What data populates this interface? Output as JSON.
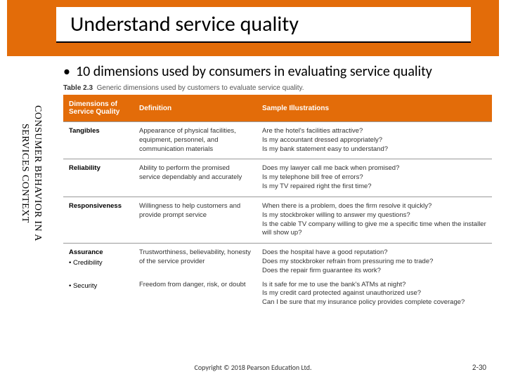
{
  "colors": {
    "accent": "#e36c09",
    "header_text": "#ffffff",
    "text": "#333333",
    "border": "#999999",
    "title_underline": "#000000"
  },
  "title": "Understand service quality",
  "bullet": "10 dimensions used by consumers in evaluating service quality",
  "sidebar": "CONSUMER BEHAVIOR IN A\nSERVICES CONTEXT",
  "caption_prefix": "Table 2.3",
  "caption_text": "Generic dimensions used by customers to evaluate service quality.",
  "table": {
    "headers": [
      "Dimensions of Service Quality",
      "Definition",
      "Sample Illustrations"
    ],
    "rows": [
      {
        "dim": "Tangibles",
        "def": "Appearance of physical facilities, equipment, personnel, and communication materials",
        "ill": "Are the hotel's facilities attractive?\nIs my accountant dressed appropriately?\nIs my bank statement easy to understand?"
      },
      {
        "dim": "Reliability",
        "def": "Ability to perform the promised service dependably and accurately",
        "ill": "Does my lawyer call me back when promised?\nIs my telephone bill free of errors?\nIs my TV repaired right the first time?"
      },
      {
        "dim": "Responsiveness",
        "def": "Willingness to help customers and provide prompt service",
        "ill": "When there is a problem, does the firm resolve it quickly?\nIs my stockbroker willing to answer my questions?\nIs the cable TV company willing to give me a specific time when the installer will show up?"
      },
      {
        "dim": "Assurance",
        "sub": "• Credibility",
        "def": "Trustworthiness, believability, honesty of the service provider",
        "ill": "Does the hospital have a good reputation?\nDoes my stockbroker refrain from pressuring me to trade?\nDoes the repair firm guarantee its work?"
      },
      {
        "dim": "",
        "sub": "• Security",
        "def": "Freedom from danger, risk, or doubt",
        "ill": "Is it safe for me to use the bank's ATMs at night?\nIs my credit card protected against unauthorized use?\nCan I be sure that my insurance policy provides complete coverage?"
      }
    ]
  },
  "footer": "Copyright © 2018 Pearson Education Ltd.",
  "slide_number": "2-30"
}
